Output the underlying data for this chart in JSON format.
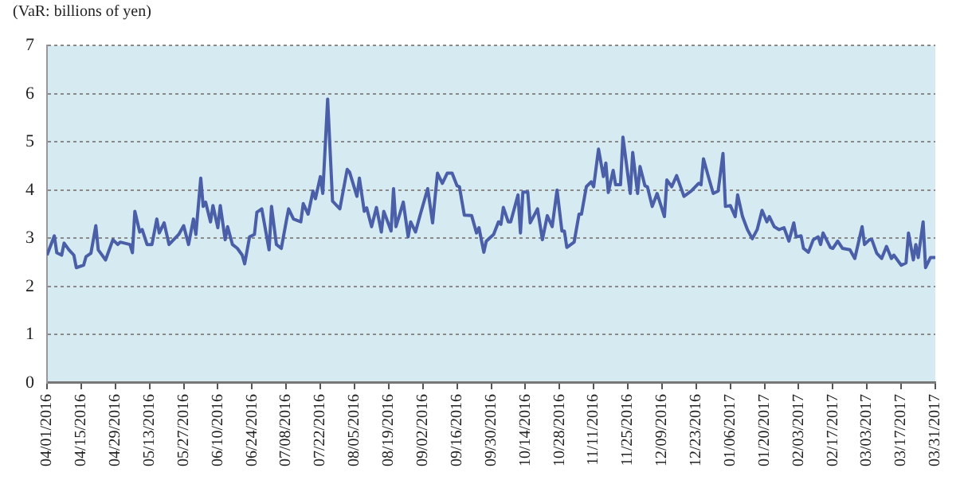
{
  "chart_data": {
    "type": "line",
    "ylabel": "(VaR: billions of yen)",
    "x": [
      "2016-04-01",
      "2016-04-04",
      "2016-04-05",
      "2016-04-07",
      "2016-04-08",
      "2016-04-10",
      "2016-04-12",
      "2016-04-13",
      "2016-04-16",
      "2016-04-17",
      "2016-04-19",
      "2016-04-21",
      "2016-04-22",
      "2016-04-25",
      "2016-04-28",
      "2016-04-30",
      "2016-05-01",
      "2016-05-05",
      "2016-05-06",
      "2016-05-07",
      "2016-05-09",
      "2016-05-10",
      "2016-05-12",
      "2016-05-14",
      "2016-05-16",
      "2016-05-17",
      "2016-05-19",
      "2016-05-21",
      "2016-05-25",
      "2016-05-27",
      "2016-05-29",
      "2016-05-31",
      "2016-06-01",
      "2016-06-03",
      "2016-06-04",
      "2016-06-05",
      "2016-06-07",
      "2016-06-08",
      "2016-06-10",
      "2016-06-11",
      "2016-06-13",
      "2016-06-14",
      "2016-06-16",
      "2016-06-18",
      "2016-06-20",
      "2016-06-21",
      "2016-06-23",
      "2016-06-25",
      "2016-06-26",
      "2016-06-28",
      "2016-07-01",
      "2016-07-02",
      "2016-07-04",
      "2016-07-06",
      "2016-07-08",
      "2016-07-09",
      "2016-07-11",
      "2016-07-14",
      "2016-07-15",
      "2016-07-17",
      "2016-07-19",
      "2016-07-20",
      "2016-07-22",
      "2016-07-23",
      "2016-07-25",
      "2016-07-27",
      "2016-07-30",
      "2016-08-02",
      "2016-08-03",
      "2016-08-06",
      "2016-08-07",
      "2016-08-09",
      "2016-08-10",
      "2016-08-12",
      "2016-08-14",
      "2016-08-16",
      "2016-08-17",
      "2016-08-20",
      "2016-08-21",
      "2016-08-22",
      "2016-08-25",
      "2016-08-27",
      "2016-08-28",
      "2016-08-30",
      "2016-09-01",
      "2016-09-04",
      "2016-09-06",
      "2016-09-08",
      "2016-09-10",
      "2016-09-12",
      "2016-09-14",
      "2016-09-16",
      "2016-09-17",
      "2016-09-19",
      "2016-09-22",
      "2016-09-24",
      "2016-09-25",
      "2016-09-27",
      "2016-09-28",
      "2016-10-01",
      "2016-10-03",
      "2016-10-04",
      "2016-10-05",
      "2016-10-07",
      "2016-10-08",
      "2016-10-11",
      "2016-10-12",
      "2016-10-13",
      "2016-10-15",
      "2016-10-16",
      "2016-10-19",
      "2016-10-21",
      "2016-10-23",
      "2016-10-25",
      "2016-10-27",
      "2016-10-29",
      "2016-10-30",
      "2016-10-31",
      "2016-11-03",
      "2016-11-05",
      "2016-11-06",
      "2016-11-08",
      "2016-11-10",
      "2016-11-11",
      "2016-11-13",
      "2016-11-15",
      "2016-11-16",
      "2016-11-17",
      "2016-11-19",
      "2016-11-20",
      "2016-11-22",
      "2016-11-23",
      "2016-11-26",
      "2016-11-27",
      "2016-11-29",
      "2016-11-30",
      "2016-12-02",
      "2016-12-03",
      "2016-12-05",
      "2016-12-07",
      "2016-12-10",
      "2016-12-11",
      "2016-12-13",
      "2016-12-15",
      "2016-12-18",
      "2016-12-21",
      "2016-12-24",
      "2016-12-25",
      "2016-12-26",
      "2016-12-28",
      "2016-12-30",
      "2017-01-01",
      "2017-01-03",
      "2017-01-04",
      "2017-01-06",
      "2017-01-08",
      "2017-01-09",
      "2017-01-11",
      "2017-01-13",
      "2017-01-15",
      "2017-01-17",
      "2017-01-19",
      "2017-01-21",
      "2017-01-22",
      "2017-01-24",
      "2017-01-26",
      "2017-01-28",
      "2017-01-30",
      "2017-02-01",
      "2017-02-02",
      "2017-02-04",
      "2017-02-05",
      "2017-02-07",
      "2017-02-09",
      "2017-02-11",
      "2017-02-12",
      "2017-02-13",
      "2017-02-16",
      "2017-02-17",
      "2017-02-19",
      "2017-02-21",
      "2017-02-24",
      "2017-02-26",
      "2017-03-01",
      "2017-03-02",
      "2017-03-04",
      "2017-03-05",
      "2017-03-07",
      "2017-03-09",
      "2017-03-11",
      "2017-03-13",
      "2017-03-14",
      "2017-03-17",
      "2017-03-19",
      "2017-03-20",
      "2017-03-22",
      "2017-03-23",
      "2017-03-24",
      "2017-03-26",
      "2017-03-27",
      "2017-03-29",
      "2017-03-31"
    ],
    "series": [
      {
        "color": "#4a5fa8",
        "values": [
          2.65,
          3.05,
          2.7,
          2.65,
          2.9,
          2.76,
          2.65,
          2.39,
          2.44,
          2.62,
          2.69,
          3.26,
          2.76,
          2.55,
          2.97,
          2.87,
          2.92,
          2.87,
          2.7,
          3.56,
          3.13,
          3.18,
          2.87,
          2.87,
          3.4,
          3.11,
          3.32,
          2.87,
          3.08,
          3.26,
          2.87,
          3.4,
          3.08,
          4.25,
          3.66,
          3.75,
          3.34,
          3.68,
          3.22,
          3.68,
          2.97,
          3.24,
          2.87,
          2.79,
          2.65,
          2.47,
          3.03,
          3.08,
          3.54,
          3.61,
          2.76,
          3.66,
          2.87,
          2.79,
          3.34,
          3.61,
          3.4,
          3.34,
          3.72,
          3.5,
          3.98,
          3.82,
          4.28,
          3.93,
          5.89,
          3.77,
          3.61,
          4.43,
          4.37,
          3.87,
          4.25,
          3.56,
          3.63,
          3.24,
          3.64,
          3.13,
          3.56,
          3.15,
          4.03,
          3.24,
          3.75,
          3.03,
          3.34,
          3.13,
          3.5,
          4.03,
          3.32,
          4.35,
          4.14,
          4.35,
          4.35,
          4.09,
          4.07,
          3.48,
          3.47,
          3.11,
          3.22,
          2.71,
          2.94,
          3.08,
          3.34,
          3.29,
          3.64,
          3.34,
          3.34,
          3.9,
          3.11,
          3.96,
          3.96,
          3.32,
          3.61,
          2.97,
          3.47,
          3.24,
          4.0,
          3.15,
          3.15,
          2.81,
          2.92,
          3.5,
          3.5,
          4.07,
          4.17,
          4.07,
          4.85,
          4.28,
          4.56,
          3.95,
          4.41,
          4.11,
          4.11,
          5.1,
          3.93,
          4.78,
          3.93,
          4.49,
          4.09,
          4.07,
          3.66,
          3.93,
          3.45,
          4.21,
          4.07,
          4.3,
          3.87,
          3.98,
          4.14,
          4.11,
          4.65,
          4.28,
          3.93,
          3.98,
          4.76,
          3.66,
          3.68,
          3.45,
          3.9,
          3.45,
          3.18,
          2.99,
          3.18,
          3.58,
          3.34,
          3.45,
          3.24,
          3.18,
          3.22,
          2.94,
          3.32,
          3.03,
          3.05,
          2.79,
          2.71,
          2.97,
          3.03,
          2.87,
          3.11,
          2.81,
          2.79,
          2.94,
          2.79,
          2.76,
          2.58,
          3.24,
          2.87,
          2.97,
          2.97,
          2.69,
          2.58,
          2.83,
          2.58,
          2.65,
          2.44,
          2.49,
          3.11,
          2.55,
          2.87,
          2.6,
          3.34,
          2.39,
          2.6,
          2.6
        ]
      }
    ],
    "xlim": [
      "2016-04-01",
      "2017-03-31"
    ],
    "xticks": [
      {
        "value": "2016-04-01",
        "label": "04/01/2016"
      },
      {
        "value": "2016-04-15",
        "label": "04/15/2016"
      },
      {
        "value": "2016-04-29",
        "label": "04/29/2016"
      },
      {
        "value": "2016-05-13",
        "label": "05/13/2016"
      },
      {
        "value": "2016-05-27",
        "label": "05/27/2016"
      },
      {
        "value": "2016-06-10",
        "label": "06/10/2016"
      },
      {
        "value": "2016-06-24",
        "label": "06/24/2016"
      },
      {
        "value": "2016-07-08",
        "label": "07/08/2016"
      },
      {
        "value": "2016-07-22",
        "label": "07/22/2016"
      },
      {
        "value": "2016-08-05",
        "label": "08/05/2016"
      },
      {
        "value": "2016-08-19",
        "label": "08/19/2016"
      },
      {
        "value": "2016-09-02",
        "label": "09/02/2016"
      },
      {
        "value": "2016-09-16",
        "label": "09/16/2016"
      },
      {
        "value": "2016-09-30",
        "label": "09/30/2016"
      },
      {
        "value": "2016-10-14",
        "label": "10/14/2016"
      },
      {
        "value": "2016-10-28",
        "label": "10/28/2016"
      },
      {
        "value": "2016-11-11",
        "label": "11/11/2016"
      },
      {
        "value": "2016-11-25",
        "label": "11/25/2016"
      },
      {
        "value": "2016-12-09",
        "label": "12/09/2016"
      },
      {
        "value": "2016-12-23",
        "label": "12/23/2016"
      },
      {
        "value": "2017-01-06",
        "label": "01/06/2017"
      },
      {
        "value": "2017-01-20",
        "label": "01/20/2017"
      },
      {
        "value": "2017-02-03",
        "label": "02/03/2017"
      },
      {
        "value": "2017-02-17",
        "label": "02/17/2017"
      },
      {
        "value": "2017-03-03",
        "label": "03/03/2017"
      },
      {
        "value": "2017-03-17",
        "label": "03/17/2017"
      },
      {
        "value": "2017-03-31",
        "label": "03/31/2017"
      }
    ],
    "ylim": [
      0,
      7
    ],
    "yticks": [
      0,
      1,
      2,
      3,
      4,
      5,
      6,
      7
    ],
    "grid": "y",
    "marker": "none",
    "line_style": "solid",
    "legend": false
  }
}
